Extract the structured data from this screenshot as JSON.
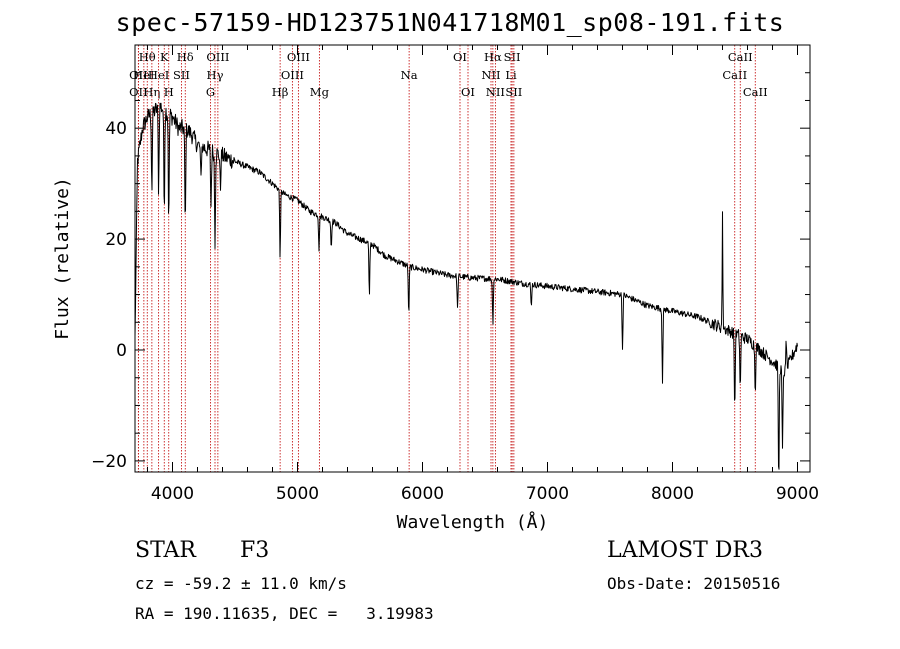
{
  "title": "spec-57159-HD123751N041718M01_sp08-191.fits",
  "info": {
    "object_class": "STAR",
    "subclass": "F3",
    "cz": "cz = -59.2 ± 11.0 km/s",
    "radec": "RA = 190.11635, DEC =   3.19983",
    "survey": "LAMOST DR3",
    "obs_date": "Obs-Date: 20150516"
  },
  "chart_data": {
    "type": "line",
    "title": "spec-57159-HD123751N041718M01_sp08-191.fits",
    "xlabel": "Wavelength (Å)",
    "ylabel": "Flux (relative)",
    "xlim": [
      3700,
      9100
    ],
    "ylim": [
      -22,
      55
    ],
    "xticks": [
      4000,
      5000,
      6000,
      7000,
      8000,
      9000
    ],
    "yticks": [
      -20,
      0,
      20,
      40
    ],
    "line_color": "#000000",
    "marker_color": "#c00000",
    "continuum": [
      [
        3700,
        2
      ],
      [
        3720,
        34
      ],
      [
        3760,
        40
      ],
      [
        3800,
        42
      ],
      [
        3850,
        43
      ],
      [
        3900,
        44
      ],
      [
        3950,
        43
      ],
      [
        4000,
        42
      ],
      [
        4050,
        40
      ],
      [
        4100,
        40
      ],
      [
        4150,
        39
      ],
      [
        4200,
        37
      ],
      [
        4300,
        36
      ],
      [
        4400,
        35
      ],
      [
        4500,
        34
      ],
      [
        4600,
        33
      ],
      [
        4700,
        32
      ],
      [
        4800,
        30
      ],
      [
        4900,
        28
      ],
      [
        5000,
        27
      ],
      [
        5100,
        25
      ],
      [
        5200,
        24
      ],
      [
        5300,
        23
      ],
      [
        5400,
        21
      ],
      [
        5500,
        20
      ],
      [
        5600,
        19
      ],
      [
        5700,
        17
      ],
      [
        5800,
        16
      ],
      [
        5900,
        15
      ],
      [
        6000,
        14.5
      ],
      [
        6200,
        13.5
      ],
      [
        6400,
        13
      ],
      [
        6600,
        12.8
      ],
      [
        6800,
        12
      ],
      [
        7000,
        11.5
      ],
      [
        7200,
        11
      ],
      [
        7400,
        10.5
      ],
      [
        7600,
        10
      ],
      [
        7800,
        8
      ],
      [
        8000,
        7
      ],
      [
        8200,
        6
      ],
      [
        8400,
        4
      ],
      [
        8500,
        3
      ],
      [
        8600,
        2
      ],
      [
        8700,
        0
      ],
      [
        8800,
        -2
      ],
      [
        8900,
        -4
      ],
      [
        9000,
        1
      ]
    ],
    "absorption_features": [
      [
        3835,
        14
      ],
      [
        3889,
        15
      ],
      [
        3934,
        18
      ],
      [
        3970,
        20
      ],
      [
        4102,
        18
      ],
      [
        4227,
        6
      ],
      [
        4308,
        10
      ],
      [
        4340,
        16
      ],
      [
        4383,
        6
      ],
      [
        4861,
        12
      ],
      [
        5172,
        6
      ],
      [
        5270,
        5
      ],
      [
        5575,
        10
      ],
      [
        5890,
        9
      ],
      [
        6280,
        6
      ],
      [
        6563,
        8
      ],
      [
        6870,
        4
      ],
      [
        7600,
        10
      ],
      [
        7920,
        13
      ],
      [
        8498,
        14
      ],
      [
        8542,
        10
      ],
      [
        8662,
        8
      ],
      [
        8850,
        22
      ],
      [
        8880,
        15
      ]
    ],
    "emission_spikes": [
      [
        8400,
        20
      ],
      [
        8910,
        6
      ]
    ],
    "line_markers": [
      {
        "wavelength": 3727,
        "label": "OII",
        "row": 2
      },
      {
        "wavelength": 3727,
        "label": "OII",
        "row": 3
      },
      {
        "wavelength": 3771,
        "label": "HeI",
        "row": 2
      },
      {
        "wavelength": 3798,
        "label": "Hθ",
        "row": 1
      },
      {
        "wavelength": 3835,
        "label": "Hη",
        "row": 3
      },
      {
        "wavelength": 3889,
        "label": "HeI",
        "row": 2
      },
      {
        "wavelength": 3934,
        "label": "K",
        "row": 1
      },
      {
        "wavelength": 3970,
        "label": "H",
        "row": 3
      },
      {
        "wavelength": 4072,
        "label": "SII",
        "row": 2
      },
      {
        "wavelength": 4102,
        "label": "Hδ",
        "row": 1
      },
      {
        "wavelength": 4304,
        "label": "G",
        "row": 3
      },
      {
        "wavelength": 4340,
        "label": "Hγ",
        "row": 2
      },
      {
        "wavelength": 4363,
        "label": "OIII",
        "row": 1
      },
      {
        "wavelength": 4861,
        "label": "Hβ",
        "row": 3
      },
      {
        "wavelength": 4959,
        "label": "OIII",
        "row": 2
      },
      {
        "wavelength": 5007,
        "label": "OIII",
        "row": 1
      },
      {
        "wavelength": 5175,
        "label": "Mg",
        "row": 3
      },
      {
        "wavelength": 5893,
        "label": "Na",
        "row": 2
      },
      {
        "wavelength": 6300,
        "label": "OI",
        "row": 1
      },
      {
        "wavelength": 6364,
        "label": "OI",
        "row": 3
      },
      {
        "wavelength": 6548,
        "label": "NII",
        "row": 2
      },
      {
        "wavelength": 6563,
        "label": "Hα",
        "row": 1
      },
      {
        "wavelength": 6583,
        "label": "NII",
        "row": 3
      },
      {
        "wavelength": 6708,
        "label": "Li",
        "row": 2
      },
      {
        "wavelength": 6717,
        "label": "SII",
        "row": 1
      },
      {
        "wavelength": 6731,
        "label": "SII",
        "row": 3
      },
      {
        "wavelength": 8498,
        "label": "CaII",
        "row": 2
      },
      {
        "wavelength": 8542,
        "label": "CaII",
        "row": 1
      },
      {
        "wavelength": 8662,
        "label": "CaII",
        "row": 3
      }
    ]
  }
}
